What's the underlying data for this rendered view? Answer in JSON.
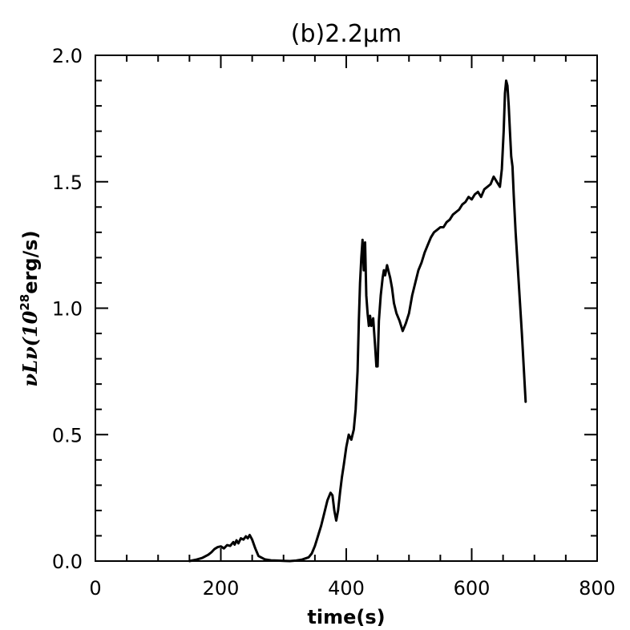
{
  "chart_data": {
    "type": "line",
    "title": "(b)2.2μm",
    "xlabel": "time(s)",
    "ylabel": {
      "prefix": "νLν(10",
      "superscript": "28",
      "suffix": "erg/s)"
    },
    "xlim": [
      0,
      800
    ],
    "ylim": [
      0,
      2.0
    ],
    "xticks": [
      0,
      200,
      400,
      600,
      800
    ],
    "yticks": [
      0.0,
      0.5,
      1.0,
      1.5,
      2.0
    ],
    "xtick_labels": [
      "0",
      "200",
      "400",
      "600",
      "800"
    ],
    "ytick_labels": [
      "0.0",
      "0.5",
      "1.0",
      "1.5",
      "2.0"
    ],
    "grid": false,
    "line_color": "#000000",
    "series": [
      {
        "x": [
          150,
          160,
          170,
          180,
          185,
          190,
          195,
          200,
          205,
          210,
          215,
          220,
          222,
          225,
          228,
          232,
          236,
          240,
          243,
          246,
          250,
          255,
          260,
          270,
          280,
          290,
          300,
          310,
          320,
          330,
          340,
          345,
          350,
          355,
          360,
          365,
          370,
          375,
          378,
          381,
          384,
          387,
          390,
          393,
          396,
          400,
          404,
          408,
          412,
          415,
          418,
          420,
          422,
          424,
          426,
          428,
          430,
          432,
          434,
          436,
          438,
          440,
          443,
          446,
          448,
          450,
          452,
          455,
          458,
          460,
          462,
          465,
          468,
          470,
          473,
          476,
          480,
          485,
          490,
          495,
          500,
          505,
          510,
          515,
          520,
          525,
          530,
          535,
          540,
          545,
          550,
          555,
          560,
          565,
          570,
          575,
          580,
          585,
          590,
          595,
          600,
          605,
          610,
          615,
          620,
          625,
          630,
          635,
          640,
          645,
          648,
          651,
          653,
          655,
          657,
          659,
          661,
          663,
          665,
          667,
          670,
          675,
          680,
          686
        ],
        "y": [
          0.0,
          0.005,
          0.012,
          0.025,
          0.035,
          0.048,
          0.055,
          0.058,
          0.05,
          0.063,
          0.06,
          0.075,
          0.065,
          0.082,
          0.07,
          0.09,
          0.085,
          0.098,
          0.09,
          0.103,
          0.085,
          0.05,
          0.02,
          0.007,
          0.003,
          0.002,
          0.001,
          0.0,
          0.002,
          0.006,
          0.015,
          0.03,
          0.06,
          0.1,
          0.14,
          0.19,
          0.24,
          0.27,
          0.26,
          0.2,
          0.16,
          0.2,
          0.27,
          0.33,
          0.38,
          0.45,
          0.5,
          0.48,
          0.52,
          0.6,
          0.75,
          0.95,
          1.1,
          1.2,
          1.27,
          1.15,
          1.26,
          1.05,
          0.98,
          0.93,
          0.97,
          0.93,
          0.96,
          0.85,
          0.77,
          0.77,
          0.95,
          1.05,
          1.12,
          1.15,
          1.13,
          1.17,
          1.14,
          1.12,
          1.08,
          1.02,
          0.98,
          0.95,
          0.91,
          0.94,
          0.98,
          1.05,
          1.1,
          1.15,
          1.18,
          1.22,
          1.25,
          1.28,
          1.3,
          1.31,
          1.32,
          1.32,
          1.34,
          1.35,
          1.37,
          1.38,
          1.39,
          1.41,
          1.42,
          1.44,
          1.43,
          1.45,
          1.46,
          1.44,
          1.47,
          1.48,
          1.49,
          1.52,
          1.5,
          1.48,
          1.55,
          1.7,
          1.85,
          1.9,
          1.88,
          1.8,
          1.7,
          1.6,
          1.56,
          1.45,
          1.3,
          1.1,
          0.9,
          0.63
        ]
      }
    ]
  }
}
